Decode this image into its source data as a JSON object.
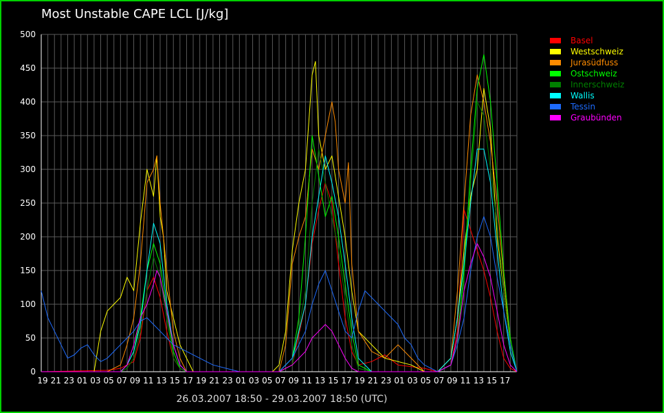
{
  "chart_data": {
    "type": "line",
    "title": "Most Unstable CAPE LCL [J/kg]",
    "xlabel": "26.03.2007 18:50 - 29.03.2007 18:50  (UTC)",
    "ylabel": "",
    "ylim": [
      0,
      500
    ],
    "yticks": [
      0,
      50,
      100,
      150,
      200,
      250,
      300,
      350,
      400,
      450,
      500
    ],
    "x_tick_labels": [
      "19",
      "21",
      "23",
      "01",
      "03",
      "05",
      "07",
      "09",
      "11",
      "13",
      "15",
      "17",
      "19",
      "21",
      "23",
      "01",
      "03",
      "05",
      "07",
      "09",
      "11",
      "13",
      "15",
      "17",
      "19",
      "21",
      "23",
      "01",
      "03",
      "05",
      "07",
      "09",
      "11",
      "13",
      "15",
      "17"
    ],
    "x_tick_hours": [
      0,
      2,
      4,
      6,
      8,
      10,
      12,
      14,
      16,
      18,
      20,
      22,
      24,
      26,
      28,
      30,
      32,
      34,
      36,
      38,
      40,
      42,
      44,
      46,
      48,
      50,
      52,
      54,
      56,
      58,
      60,
      62,
      64,
      66,
      68,
      70
    ],
    "xlim_hours": [
      0,
      72
    ],
    "x_unit": "hours since 26.03.2007 19:00 UTC",
    "grid": true,
    "legend_position": "right",
    "series": [
      {
        "name": "Basel",
        "color": "#ff0000",
        "x": [
          0,
          10,
          12,
          14,
          15,
          16,
          17,
          18,
          19,
          20,
          21,
          22,
          24,
          30,
          36,
          38,
          40,
          41,
          42,
          43,
          44,
          45,
          46,
          47,
          48,
          50,
          52,
          54,
          58,
          60,
          62,
          63,
          64,
          65,
          66,
          67,
          68,
          69,
          70,
          71,
          72
        ],
        "values": [
          0,
          2,
          5,
          15,
          50,
          120,
          140,
          110,
          60,
          20,
          5,
          0,
          0,
          0,
          0,
          10,
          100,
          190,
          240,
          280,
          250,
          160,
          80,
          30,
          10,
          15,
          25,
          10,
          5,
          0,
          10,
          60,
          240,
          210,
          180,
          150,
          110,
          60,
          20,
          5,
          0
        ]
      },
      {
        "name": "Westschweiz",
        "color": "#ffff00",
        "x": [
          0,
          8,
          9,
          10,
          11,
          12,
          13,
          14,
          15,
          16,
          17,
          17.5,
          18,
          18.5,
          19,
          20,
          21,
          22,
          23,
          24,
          30,
          35,
          36,
          37,
          38,
          39,
          40,
          41,
          41.5,
          42,
          43,
          44,
          45,
          46,
          47,
          48,
          52,
          56,
          58,
          60,
          62,
          63,
          64,
          65,
          66,
          67,
          68,
          69,
          70,
          71,
          72
        ],
        "values": [
          0,
          0,
          60,
          90,
          100,
          110,
          140,
          120,
          220,
          300,
          260,
          320,
          230,
          200,
          120,
          80,
          40,
          20,
          0,
          0,
          0,
          0,
          10,
          60,
          180,
          250,
          300,
          440,
          460,
          350,
          300,
          320,
          260,
          200,
          120,
          60,
          20,
          10,
          0,
          0,
          20,
          80,
          180,
          260,
          300,
          420,
          360,
          200,
          120,
          40,
          0
        ]
      },
      {
        "name": "Jurasüdfuss",
        "color": "#ff8c00",
        "x": [
          0,
          10,
          12,
          13,
          14,
          15,
          16,
          17,
          17.5,
          18,
          19,
          20,
          21,
          22,
          24,
          30,
          36,
          37,
          38,
          39,
          40,
          41,
          42,
          43,
          44,
          44.5,
          45,
          46,
          46.5,
          47,
          48,
          50,
          52,
          54,
          56,
          58,
          60,
          62,
          63,
          64,
          65,
          66,
          67,
          68,
          69,
          70,
          71,
          72
        ],
        "values": [
          0,
          0,
          10,
          40,
          80,
          160,
          280,
          300,
          320,
          250,
          150,
          60,
          20,
          0,
          0,
          0,
          0,
          40,
          160,
          200,
          230,
          330,
          300,
          350,
          400,
          370,
          300,
          250,
          310,
          160,
          60,
          30,
          20,
          40,
          20,
          0,
          0,
          20,
          120,
          250,
          380,
          440,
          400,
          340,
          250,
          140,
          40,
          0
        ]
      },
      {
        "name": "Ostschweiz",
        "color": "#00ff00",
        "x": [
          0,
          12,
          13,
          14,
          15,
          16,
          17,
          18,
          19,
          20,
          21,
          22,
          24,
          36,
          38,
          39,
          40,
          41,
          42,
          43,
          44,
          45,
          46,
          47,
          48,
          50,
          60,
          62,
          63,
          64,
          65,
          66,
          67,
          68,
          69,
          70,
          71,
          72
        ],
        "values": [
          0,
          0,
          10,
          30,
          80,
          150,
          190,
          160,
          90,
          30,
          5,
          0,
          0,
          0,
          20,
          80,
          200,
          350,
          290,
          230,
          260,
          200,
          130,
          60,
          10,
          0,
          0,
          10,
          50,
          150,
          300,
          420,
          470,
          400,
          280,
          150,
          50,
          0
        ]
      },
      {
        "name": "Innerschweiz",
        "color": "#008000",
        "x": [
          0,
          12,
          13,
          14,
          15,
          16,
          17,
          18,
          19,
          20,
          21,
          22,
          24,
          36,
          38,
          40,
          41,
          42,
          43,
          44,
          45,
          46,
          47,
          48,
          50,
          60,
          62,
          63,
          64,
          65,
          66,
          67,
          68,
          69,
          70,
          71,
          72
        ],
        "values": [
          0,
          0,
          5,
          20,
          60,
          120,
          170,
          140,
          80,
          20,
          5,
          0,
          0,
          0,
          10,
          120,
          250,
          330,
          280,
          230,
          180,
          110,
          40,
          5,
          0,
          0,
          10,
          40,
          140,
          280,
          400,
          380,
          300,
          220,
          120,
          40,
          0
        ]
      },
      {
        "name": "Wallis",
        "color": "#00ffff",
        "x": [
          0,
          12,
          13,
          14,
          15,
          16,
          17,
          18,
          19,
          20,
          21,
          22,
          24,
          36,
          38,
          40,
          41,
          42,
          43,
          44,
          45,
          46,
          47,
          48,
          50,
          60,
          62,
          63,
          64,
          65,
          66,
          67,
          68,
          69,
          70,
          71,
          72
        ],
        "values": [
          0,
          0,
          10,
          30,
          70,
          150,
          220,
          190,
          100,
          40,
          10,
          0,
          0,
          0,
          20,
          100,
          200,
          260,
          320,
          280,
          230,
          160,
          80,
          20,
          0,
          0,
          20,
          80,
          160,
          250,
          330,
          330,
          280,
          180,
          90,
          30,
          0
        ]
      },
      {
        "name": "Tessin",
        "color": "#1e6cff",
        "x": [
          0,
          0.5,
          1,
          2,
          3,
          4,
          5,
          6,
          7,
          8,
          9,
          10,
          11,
          12,
          13,
          14,
          15,
          16,
          17,
          18,
          19,
          20,
          22,
          24,
          26,
          28,
          30,
          32,
          34,
          36,
          38,
          40,
          41,
          42,
          43,
          44,
          45,
          46,
          47,
          48,
          49,
          50,
          51,
          52,
          53,
          54,
          55,
          56,
          57,
          58,
          60,
          62,
          63,
          64,
          65,
          66,
          67,
          68,
          69,
          70,
          71,
          72
        ],
        "values": [
          120,
          100,
          80,
          60,
          40,
          20,
          25,
          35,
          40,
          25,
          15,
          20,
          30,
          40,
          50,
          60,
          75,
          80,
          70,
          60,
          50,
          40,
          30,
          20,
          10,
          5,
          0,
          0,
          0,
          0,
          20,
          60,
          100,
          130,
          150,
          120,
          90,
          60,
          50,
          90,
          120,
          110,
          100,
          90,
          80,
          70,
          50,
          40,
          20,
          10,
          0,
          10,
          40,
          80,
          150,
          200,
          230,
          200,
          140,
          90,
          40,
          0
        ]
      },
      {
        "name": "Graubünden",
        "color": "#ff00ff",
        "x": [
          0,
          12,
          13,
          14,
          15,
          16,
          17,
          17.5,
          18,
          19,
          20,
          21,
          22,
          24,
          36,
          38,
          40,
          41,
          42,
          43,
          44,
          45,
          46,
          47,
          48,
          50,
          60,
          62,
          63,
          64,
          65,
          66,
          67,
          68,
          69,
          70,
          71,
          72
        ],
        "values": [
          0,
          0,
          10,
          40,
          80,
          100,
          130,
          150,
          140,
          90,
          40,
          10,
          0,
          0,
          0,
          10,
          30,
          50,
          60,
          70,
          60,
          40,
          20,
          5,
          0,
          0,
          0,
          10,
          50,
          120,
          160,
          190,
          170,
          140,
          90,
          40,
          10,
          0
        ]
      }
    ]
  }
}
